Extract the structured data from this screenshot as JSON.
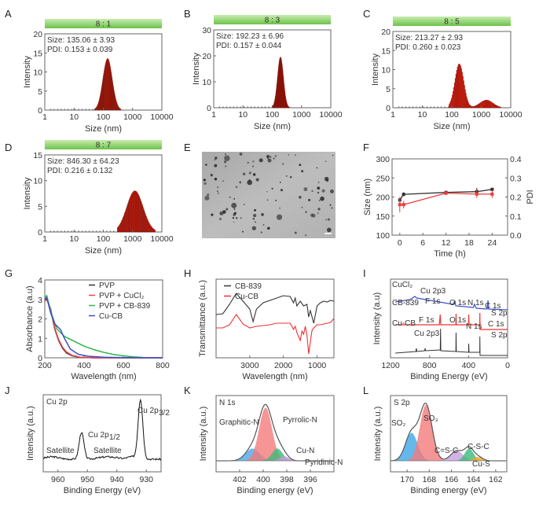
{
  "figure": {
    "panels": [
      "A",
      "B",
      "C",
      "D",
      "E",
      "F",
      "G",
      "H",
      "I",
      "J",
      "K",
      "L"
    ]
  },
  "chart_data": [
    {
      "panel": "A",
      "type": "bar",
      "header": "8 : 1",
      "annotation": [
        "Size: 135.06 ± 3.93",
        "PDI: 0.153 ± 0.039"
      ],
      "xlabel": "Size (nm)",
      "ylabel": "Intensity",
      "xscale": "log",
      "xlim": [
        1,
        10000
      ],
      "ylim": [
        0,
        20
      ],
      "xticks": [
        "1",
        "10",
        "100",
        "1000",
        "10000"
      ],
      "yticks": [
        "0",
        "5",
        "10",
        "15",
        "20"
      ],
      "distribution": {
        "peaks": [
          {
            "center": 140,
            "sigma_log": 0.16,
            "height": 13.5
          },
          {
            "center": 6000,
            "sigma_log": 0.1,
            "height": 0.8
          }
        ],
        "range": [
          50,
          400
        ]
      },
      "color": "#e8200e"
    },
    {
      "panel": "B",
      "type": "bar",
      "header": "8 : 3",
      "annotation": [
        "Size: 192.23 ± 6.96",
        "PDI: 0.157 ±  0.044"
      ],
      "xlabel": "Size (nm)",
      "ylabel": "Intensity",
      "xscale": "log",
      "xlim": [
        1,
        10000
      ],
      "ylim": [
        0,
        30
      ],
      "xticks": [
        "1",
        "10",
        "100",
        "1000",
        "10000"
      ],
      "yticks": [
        "0",
        "10",
        "20",
        "30"
      ],
      "distribution": {
        "peaks": [
          {
            "center": 190,
            "sigma_log": 0.1,
            "height": 19.5
          }
        ],
        "range": [
          100,
          400
        ]
      },
      "color": "#e8200e"
    },
    {
      "panel": "C",
      "type": "bar",
      "header": "8 : 5",
      "annotation": [
        "Size: 213.27 ± 2.93",
        "PDI: 0.260 ±  0.023"
      ],
      "xlabel": "Size (nm)",
      "ylabel": "Intensity",
      "xscale": "log",
      "xlim": [
        1,
        10000
      ],
      "ylim": [
        0,
        20
      ],
      "xticks": [
        "1",
        "10",
        "100",
        "1000",
        "10000"
      ],
      "yticks": [
        "0",
        "5",
        "10",
        "15",
        "20"
      ],
      "distribution": {
        "peaks": [
          {
            "center": 180,
            "sigma_log": 0.15,
            "height": 11.5
          },
          {
            "center": 1500,
            "sigma_log": 0.22,
            "height": 2
          }
        ],
        "range": [
          80,
          5000
        ]
      },
      "color": "#e8200e"
    },
    {
      "panel": "D",
      "type": "bar",
      "header": "8 : 7",
      "annotation": [
        "Size: 846.30 ± 64.23",
        "PDI: 0.216 ± 0.132"
      ],
      "xlabel": "Size (nm)",
      "ylabel": "Intensity",
      "xscale": "log",
      "xlim": [
        1,
        10000
      ],
      "ylim": [
        0,
        15
      ],
      "xticks": [
        "1",
        "10",
        "100",
        "1000",
        "10000"
      ],
      "yticks": [
        "0",
        "5",
        "10",
        "15"
      ],
      "distribution": {
        "peaks": [
          {
            "center": 1200,
            "sigma_log": 0.28,
            "height": 8
          }
        ],
        "range": [
          300,
          6000
        ]
      },
      "color": "#e8200e"
    },
    {
      "panel": "E",
      "type": "image",
      "description": "TEM micrograph with dark spherical nanoparticles on grey background, scale bar at bottom-right"
    },
    {
      "panel": "F",
      "type": "line",
      "xlabel": "Time (h)",
      "ylabel": "Size (nm)",
      "y2label": "PDI",
      "xlim": [
        -2,
        28
      ],
      "ylim": [
        100,
        300
      ],
      "y2lim": [
        0.0,
        0.4
      ],
      "xticks": [
        "0",
        "6",
        "12",
        "18",
        "24"
      ],
      "yticks": [
        "100",
        "150",
        "200",
        "250",
        "300"
      ],
      "y2ticks": [
        "0.0",
        "0.1",
        "0.2",
        "0.3",
        "0.4"
      ],
      "x": [
        0,
        1,
        12,
        20,
        24
      ],
      "series": [
        {
          "name": "Size",
          "axis": "left",
          "color": "#333333",
          "values": [
            192,
            207,
            212,
            214,
            220
          ],
          "errors": [
            4,
            5,
            3,
            10,
            4
          ]
        },
        {
          "name": "PDI",
          "axis": "right",
          "color": "#f03a3a",
          "values": [
            0.16,
            0.16,
            0.22,
            0.215,
            0.215
          ],
          "errors": [
            0.04,
            0.02,
            0.01,
            0.02,
            0.02
          ]
        }
      ]
    },
    {
      "panel": "G",
      "type": "line",
      "xlabel": "Wavelength (nm)",
      "ylabel": "Absorbance (a.u)",
      "xlim": [
        200,
        800
      ],
      "ylim": [
        0,
        4
      ],
      "xticks": [
        "200",
        "400",
        "600",
        "800"
      ],
      "yticks": [
        "0",
        "1",
        "2",
        "3",
        "4"
      ],
      "legend_position": "top-right",
      "series": [
        {
          "name": "PVP",
          "color": "#333333",
          "x": [
            200,
            210,
            230,
            250,
            270,
            290,
            310,
            340,
            380,
            450,
            800
          ],
          "values": [
            3.0,
            3.05,
            2.5,
            1.5,
            0.9,
            0.5,
            0.25,
            0.1,
            0.02,
            0,
            0
          ]
        },
        {
          "name": "PVP + CuCl₂",
          "color": "#f04040",
          "x": [
            200,
            210,
            230,
            250,
            270,
            290,
            310,
            340,
            380,
            450,
            800
          ],
          "values": [
            2.9,
            3.0,
            2.5,
            1.55,
            0.95,
            0.55,
            0.3,
            0.12,
            0.03,
            0,
            0
          ]
        },
        {
          "name": "PVP + CB-839",
          "color": "#2fb34a",
          "x": [
            200,
            210,
            230,
            260,
            300,
            350,
            400,
            450,
            500,
            550,
            600,
            650,
            700
          ],
          "values": [
            3.1,
            3.2,
            2.4,
            1.5,
            1.1,
            0.85,
            0.6,
            0.42,
            0.28,
            0.17,
            0.1,
            0.05,
            0.02
          ]
        },
        {
          "name": "Cu-CB",
          "color": "#3a4fc8",
          "x": [
            200,
            210,
            230,
            250,
            280,
            300,
            330,
            370,
            420,
            500,
            600,
            800
          ],
          "values": [
            3.0,
            3.1,
            2.3,
            1.75,
            1.45,
            1.0,
            0.45,
            0.18,
            0.08,
            0.03,
            0.01,
            0
          ]
        }
      ]
    },
    {
      "panel": "H",
      "type": "line",
      "xlabel": "Wavelength (nm)",
      "ylabel": "Transmittance (a.u.)",
      "xlim": [
        4000,
        500
      ],
      "xticks": [
        "3000",
        "2000",
        "1000"
      ],
      "legend_position": "top-left",
      "series": [
        {
          "name": "CB-839",
          "color": "#333333",
          "x": [
            4000,
            3800,
            3600,
            3400,
            3200,
            3000,
            2900,
            2800,
            2600,
            2200,
            2000,
            1800,
            1700,
            1650,
            1600,
            1500,
            1400,
            1300,
            1250,
            1200,
            1100,
            1000,
            900,
            800,
            700,
            600,
            500
          ],
          "values": [
            0.55,
            0.56,
            0.68,
            0.82,
            0.72,
            0.62,
            0.46,
            0.62,
            0.7,
            0.76,
            0.79,
            0.78,
            0.7,
            0.76,
            0.66,
            0.72,
            0.66,
            0.68,
            0.52,
            0.6,
            0.44,
            0.66,
            0.7,
            0.72,
            0.71,
            0.73,
            0.72
          ]
        },
        {
          "name": "Cu-CB",
          "color": "#f03030",
          "x": [
            4000,
            3800,
            3600,
            3400,
            3200,
            3000,
            2800,
            2600,
            2400,
            2200,
            2000,
            1800,
            1700,
            1650,
            1600,
            1500,
            1450,
            1400,
            1350,
            1300,
            1250,
            1200,
            1150,
            1100,
            1000,
            900,
            800,
            700,
            600,
            500
          ],
          "values": [
            0.38,
            0.38,
            0.42,
            0.55,
            0.43,
            0.38,
            0.4,
            0.41,
            0.42,
            0.44,
            0.44,
            0.44,
            0.36,
            0.4,
            0.32,
            0.22,
            0.34,
            0.3,
            0.4,
            0.28,
            0.05,
            0.2,
            0.35,
            0.38,
            0.42,
            0.42,
            0.43,
            0.44,
            0.45,
            0.5
          ]
        }
      ]
    },
    {
      "panel": "I",
      "type": "line",
      "xlabel": "Binding Energy (eV)",
      "ylabel": "Intensity (a.u)",
      "xlim": [
        1200,
        0
      ],
      "xticks": [
        "1200",
        "800",
        "400",
        "0"
      ],
      "series": [
        {
          "name": "CuCl₂",
          "color": "#3a4fc8",
          "annotations": [
            "Cu 2p3"
          ]
        },
        {
          "name": "CB-839",
          "color": "#f03030",
          "annotations": [
            "F 1s",
            "O 1s",
            "N 1s",
            "C 1s",
            "S 2p"
          ]
        },
        {
          "name": "Cu-CB",
          "color": "#333333",
          "annotations": [
            "F 1s",
            "O 1s",
            "N 1s",
            "C 1s",
            "Cu 2p3",
            "S 2p"
          ]
        }
      ]
    },
    {
      "panel": "J",
      "type": "line",
      "xlabel": "Binding Energy (eV)",
      "ylabel": "Intensity (a.u.)",
      "xlim": [
        965,
        925
      ],
      "xticks": [
        "960",
        "950",
        "940",
        "930"
      ],
      "title": "Cu 2p",
      "annotations": [
        "Cu 2p1/2",
        "Cu 2p3/2",
        "Satellite",
        "Satellite"
      ],
      "peaks": [
        {
          "center": 952,
          "height": 0.45
        },
        {
          "center": 932,
          "height": 1.0
        }
      ],
      "color": "#111111"
    },
    {
      "panel": "K",
      "type": "area",
      "xlabel": "Binding energy (eV)",
      "ylabel": "Intensity (a.u.)",
      "xlim": [
        404,
        394
      ],
      "xticks": [
        "402",
        "400",
        "398",
        "396"
      ],
      "title": "N 1s",
      "components": [
        {
          "name": "Graphitic-N",
          "color": "#4aa8e8",
          "center": 400.9,
          "height": 0.22,
          "width": 0.6
        },
        {
          "name": "Pyrrolic-N",
          "color": "#f27b7b",
          "center": 399.8,
          "height": 0.95,
          "width": 0.55
        },
        {
          "name": "Cu-N",
          "color": "#3cb97a",
          "center": 398.8,
          "height": 0.22,
          "width": 0.45
        },
        {
          "name": "Pyridinic-N",
          "color": "#c79be0",
          "center": 398.2,
          "height": 0.08,
          "width": 0.4
        }
      ]
    },
    {
      "panel": "L",
      "type": "area",
      "xlabel": "Binding energy (eV)",
      "ylabel": "Intensity (a.u.)",
      "xlim": [
        171.5,
        161
      ],
      "xticks": [
        "170",
        "168",
        "166",
        "164",
        "162"
      ],
      "title": "S 2p",
      "components": [
        {
          "name": "SO₂",
          "color": "#3ea6e6",
          "center": 169.6,
          "height": 0.5,
          "width": 0.55
        },
        {
          "name": "SO₃",
          "color": "#f27b7b",
          "center": 168.3,
          "height": 1.0,
          "width": 0.55
        },
        {
          "name": "C=S-C",
          "color": "#c7a0e0",
          "center": 165.5,
          "height": 0.18,
          "width": 0.55
        },
        {
          "name": "C-S-C",
          "color": "#3cb97a",
          "center": 164.4,
          "height": 0.22,
          "width": 0.4
        },
        {
          "name": "Cu-S",
          "color": "#f5a623",
          "center": 163.6,
          "height": 0.07,
          "width": 0.4
        }
      ]
    }
  ]
}
